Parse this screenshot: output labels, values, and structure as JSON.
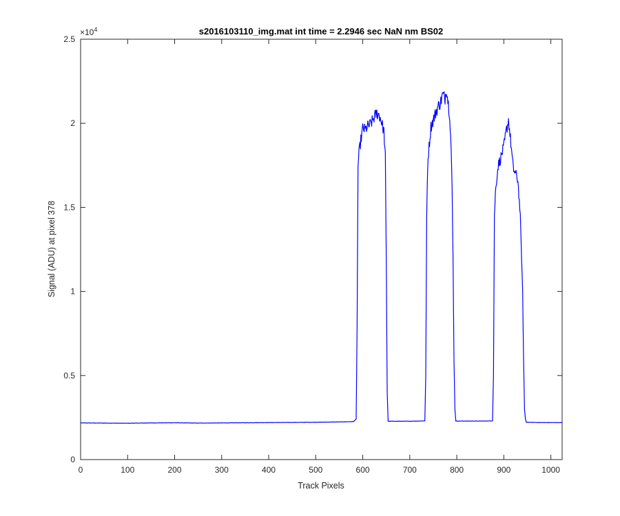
{
  "chart_data": {
    "type": "line",
    "title": "s2016103110_img.mat int time = 2.2946 sec  NaN nm BS02",
    "xlabel": "Track Pixels",
    "ylabel": "Signal (ADU) at pixel 378",
    "y_exponent": "×10",
    "y_exponent_power": "4",
    "xlim": [
      0,
      1024
    ],
    "ylim": [
      0,
      25000
    ],
    "x_ticks": [
      0,
      100,
      200,
      300,
      400,
      500,
      600,
      700,
      800,
      900,
      1000
    ],
    "x_tick_labels": [
      "0",
      "100",
      "200",
      "300",
      "400",
      "500",
      "600",
      "700",
      "800",
      "900",
      "1000"
    ],
    "y_ticks": [
      0,
      5000,
      10000,
      15000,
      20000,
      25000
    ],
    "y_tick_labels": [
      "0",
      "0.5",
      "1",
      "1.5",
      "2",
      "2.5"
    ],
    "grid": false,
    "line_color": "#0000FF",
    "series": [
      {
        "x": [
          0,
          50,
          100,
          150,
          200,
          250,
          300,
          350,
          400,
          450,
          500,
          550,
          580,
          586,
          588,
          590,
          592,
          596,
          600,
          605,
          610,
          615,
          620,
          625,
          630,
          635,
          640,
          645,
          648,
          650,
          652,
          654,
          700,
          732,
          734,
          736,
          738,
          740,
          745,
          750,
          755,
          760,
          765,
          770,
          775,
          778,
          780,
          785,
          788,
          790,
          792,
          794,
          796,
          798,
          850,
          876,
          878,
          880,
          882,
          884,
          888,
          892,
          896,
          900,
          905,
          910,
          915,
          920,
          925,
          930,
          935,
          940,
          942,
          944,
          946,
          948,
          980,
          1024
        ],
        "y": [
          2180,
          2170,
          2160,
          2180,
          2190,
          2170,
          2180,
          2190,
          2200,
          2210,
          2220,
          2240,
          2260,
          2400,
          8000,
          17500,
          18200,
          19000,
          19700,
          19600,
          19800,
          19900,
          20100,
          20400,
          20600,
          20500,
          20100,
          19500,
          18000,
          12000,
          4000,
          2280,
          2280,
          2300,
          5000,
          14500,
          17500,
          18300,
          19800,
          20200,
          20600,
          21000,
          21200,
          21700,
          21500,
          22100,
          21600,
          20500,
          18500,
          16000,
          12000,
          6000,
          3000,
          2290,
          2290,
          2300,
          5000,
          14500,
          15800,
          16500,
          17500,
          17800,
          18200,
          18600,
          19500,
          20200,
          18800,
          17300,
          17000,
          16600,
          14500,
          10000,
          6000,
          3000,
          2400,
          2220,
          2200,
          2200
        ]
      }
    ]
  }
}
